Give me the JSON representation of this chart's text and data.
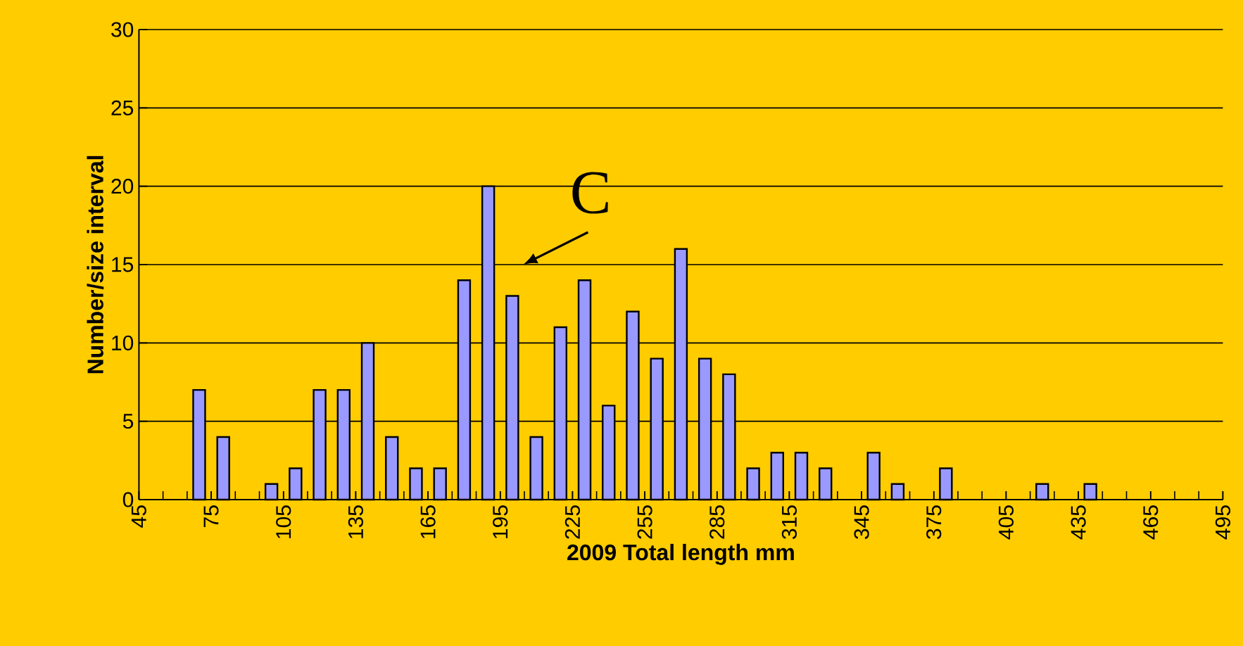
{
  "chart_data": {
    "type": "histogram",
    "xlabel": "2009 Total length mm",
    "ylabel": "Number/size interval",
    "bins": [
      45,
      55,
      65,
      75,
      85,
      95,
      105,
      115,
      125,
      135,
      145,
      155,
      165,
      175,
      185,
      195,
      205,
      215,
      225,
      235,
      245,
      255,
      265,
      275,
      285,
      295,
      305,
      315,
      325,
      335,
      345,
      355,
      365,
      375,
      385,
      395,
      405,
      415,
      425,
      435,
      445,
      455,
      465,
      475,
      485,
      495
    ],
    "values": [
      0,
      0,
      7,
      4,
      0,
      1,
      2,
      7,
      7,
      10,
      4,
      2,
      2,
      14,
      20,
      13,
      4,
      11,
      14,
      6,
      12,
      9,
      16,
      9,
      8,
      2,
      3,
      3,
      2,
      0,
      3,
      1,
      0,
      2,
      0,
      0,
      0,
      1,
      0,
      1,
      0,
      0,
      0,
      0,
      0
    ],
    "color": "#9999ff",
    "xlim": [
      45,
      495
    ],
    "xticks": [
      45,
      75,
      105,
      135,
      165,
      195,
      225,
      255,
      285,
      315,
      345,
      375,
      405,
      435,
      465,
      495
    ],
    "ylim": [
      0,
      30
    ],
    "yticks": [
      0,
      5,
      10,
      15,
      20,
      25,
      30
    ],
    "grid": "y",
    "annotations": [
      "C"
    ]
  }
}
